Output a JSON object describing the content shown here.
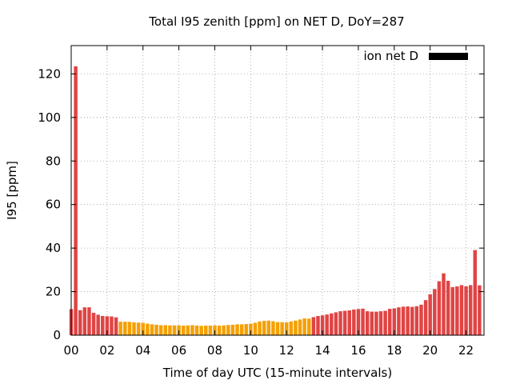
{
  "chart_data": {
    "type": "bar",
    "title": "Total I95 zenith [ppm] on NET D, DoY=287",
    "xlabel": "Time of day UTC (15-minute intervals)",
    "ylabel": "I95 [ppm]",
    "legend": {
      "label": "ion net D",
      "color": "#000000",
      "position": "top-right"
    },
    "x_unit": "hours UTC",
    "bar_interval_hours": 0.25,
    "xlim": [
      0,
      23
    ],
    "ylim": [
      0,
      133
    ],
    "xticks": [
      0,
      2,
      4,
      6,
      8,
      10,
      12,
      14,
      16,
      18,
      20,
      22
    ],
    "xtick_labels": [
      "00",
      "02",
      "04",
      "06",
      "08",
      "10",
      "12",
      "14",
      "16",
      "18",
      "20",
      "22"
    ],
    "yticks": [
      0,
      20,
      40,
      60,
      80,
      100,
      120
    ],
    "grid": true,
    "colors": {
      "high": "#e04444",
      "low": "#f5a000"
    },
    "series": [
      {
        "values": [
          12.0,
          123.5,
          11.5,
          12.8,
          12.8,
          10.3,
          9.4,
          8.8,
          8.7,
          8.6,
          8.2,
          6.2,
          6.2,
          6.1,
          5.9,
          5.8,
          5.7,
          5.3,
          5.0,
          4.8,
          4.6,
          4.6,
          4.5,
          4.5,
          4.5,
          4.4,
          4.5,
          4.6,
          4.4,
          4.3,
          4.4,
          4.4,
          4.5,
          4.4,
          4.5,
          4.7,
          4.8,
          5.0,
          5.0,
          5.1,
          5.3,
          5.7,
          6.3,
          6.6,
          6.7,
          6.4,
          6.0,
          6.0,
          5.9,
          6.3,
          6.7,
          7.2,
          7.7,
          7.6,
          8.3,
          8.8,
          9.1,
          9.5,
          10.0,
          10.5,
          11.0,
          11.2,
          11.4,
          11.8,
          12.0,
          12.2,
          11.0,
          10.8,
          10.8,
          11.0,
          11.2,
          12.1,
          12.3,
          12.8,
          13.1,
          13.2,
          13.0,
          13.3,
          14.0,
          16.1,
          18.8,
          21.2,
          24.8,
          28.4,
          25.0,
          22.1,
          22.4,
          23.0,
          22.4,
          23.0,
          39.1,
          22.9
        ],
        "levels": [
          "high",
          "high",
          "high",
          "high",
          "high",
          "high",
          "high",
          "high",
          "high",
          "high",
          "high",
          "low",
          "low",
          "low",
          "low",
          "low",
          "low",
          "low",
          "low",
          "low",
          "low",
          "low",
          "low",
          "low",
          "low",
          "low",
          "low",
          "low",
          "low",
          "low",
          "low",
          "low",
          "low",
          "low",
          "low",
          "low",
          "low",
          "low",
          "low",
          "low",
          "low",
          "low",
          "low",
          "low",
          "low",
          "low",
          "low",
          "low",
          "low",
          "low",
          "low",
          "low",
          "low",
          "low",
          "high",
          "high",
          "high",
          "high",
          "high",
          "high",
          "high",
          "high",
          "high",
          "high",
          "high",
          "high",
          "high",
          "high",
          "high",
          "high",
          "high",
          "high",
          "high",
          "high",
          "high",
          "high",
          "high",
          "high",
          "high",
          "high",
          "high",
          "high",
          "high",
          "high",
          "high",
          "high",
          "high",
          "high",
          "high",
          "high",
          "high",
          "high"
        ]
      }
    ]
  }
}
